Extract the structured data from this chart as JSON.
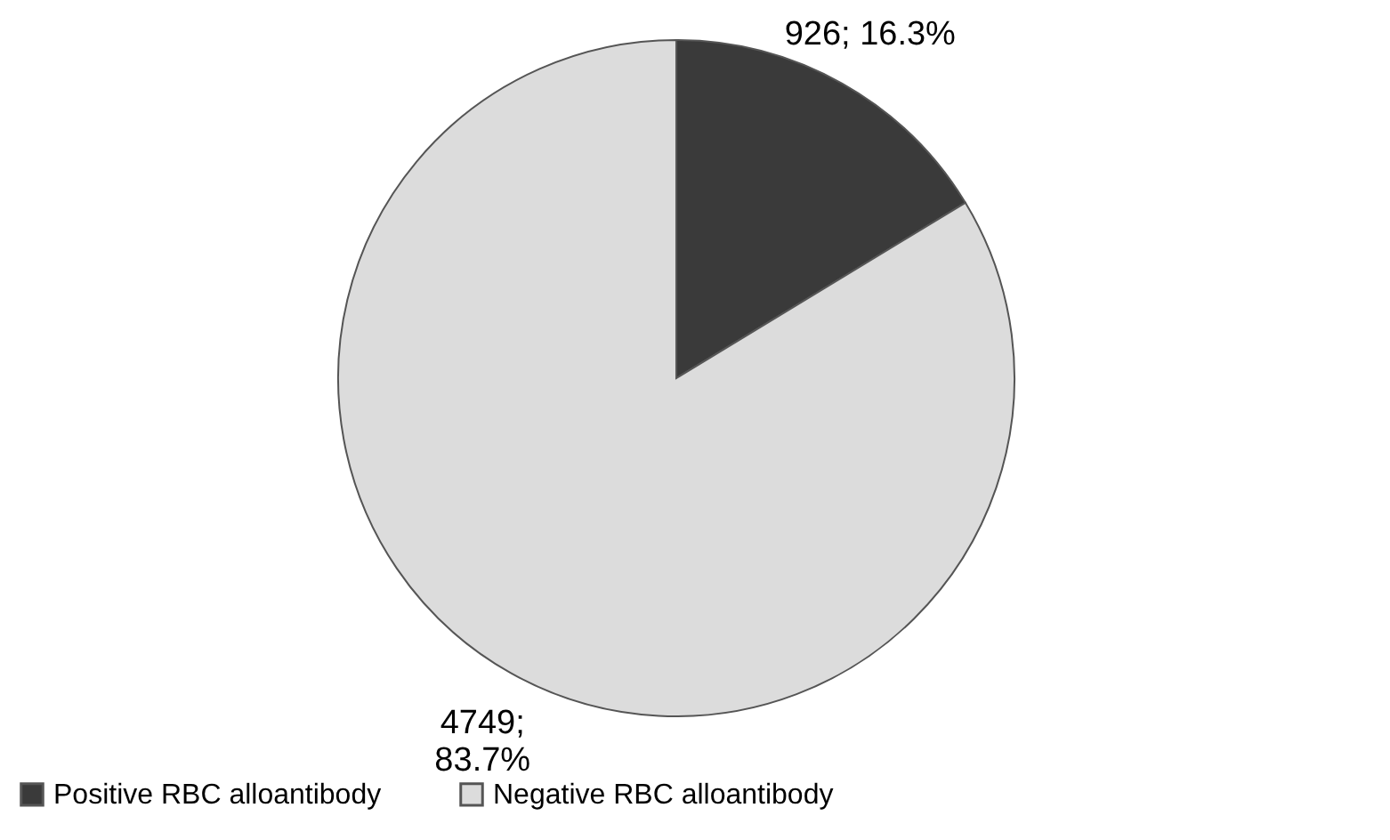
{
  "chart_data": {
    "type": "pie",
    "categories": [
      "Positive RBC alloantibody",
      "Negative RBC alloantibody"
    ],
    "values": [
      926,
      4749
    ],
    "colors": [
      "#3a3a3a",
      "#dcdcdc"
    ],
    "value_labels": [
      "926; 16.3%",
      "4749;\n83.7%"
    ],
    "legend": "bottom"
  }
}
